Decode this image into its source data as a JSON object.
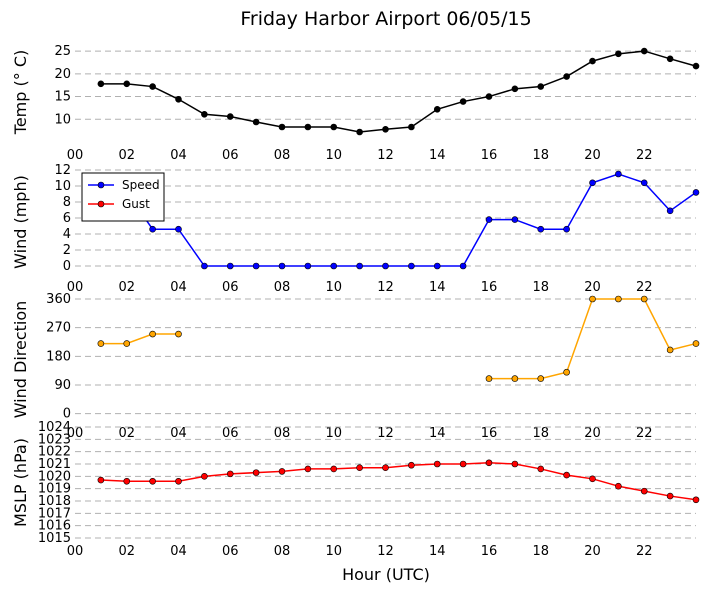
{
  "title": "Friday Harbor Airport 06/05/15",
  "xlabel": "Hour (UTC)",
  "x_ticks": [
    "00",
    "02",
    "04",
    "06",
    "08",
    "10",
    "12",
    "14",
    "16",
    "18",
    "20",
    "22"
  ],
  "x_range": [
    0,
    24
  ],
  "chart_data": [
    {
      "type": "line",
      "ylabel": "Temp ($^\\circ$C)",
      "ylabel_display": "Temp (° C)",
      "ylim": [
        5,
        27
      ],
      "yticks": [
        10,
        15,
        20,
        25
      ],
      "grid": true,
      "legend": null,
      "series": [
        {
          "color": "#000000",
          "x": [
            1,
            2,
            3,
            4,
            5,
            6,
            7,
            8,
            9,
            10,
            11,
            12,
            13,
            14,
            15,
            16,
            17,
            18,
            19,
            20,
            21,
            22,
            23,
            24
          ],
          "y": [
            17.8,
            17.8,
            17.2,
            14.4,
            11.1,
            10.6,
            9.4,
            8.3,
            8.3,
            8.3,
            7.2,
            7.8,
            8.3,
            12.2,
            13.9,
            15.0,
            16.7,
            17.2,
            19.4,
            22.8,
            24.4,
            25.0,
            23.3,
            21.7
          ]
        }
      ]
    },
    {
      "type": "line",
      "ylabel": "Wind (mph)",
      "ylim": [
        -1,
        12
      ],
      "yticks": [
        0,
        2,
        4,
        6,
        8,
        10,
        12
      ],
      "grid": true,
      "legend": "upper left",
      "series": [
        {
          "name": "Speed",
          "color": "#0000ff",
          "x": [
            1,
            2,
            3,
            4,
            5,
            6,
            7,
            8,
            9,
            10,
            11,
            12,
            13,
            14,
            15,
            16,
            17,
            18,
            19,
            20,
            21,
            22,
            23,
            24
          ],
          "y": [
            9.2,
            9.2,
            4.6,
            4.6,
            0,
            0,
            0,
            0,
            0,
            0,
            0,
            0,
            0,
            0,
            0,
            5.8,
            5.8,
            4.6,
            4.6,
            10.4,
            11.5,
            10.4,
            6.9,
            9.2
          ]
        },
        {
          "name": "Gust",
          "color": "#ff0000",
          "x": [],
          "y": []
        }
      ]
    },
    {
      "type": "line",
      "ylabel": "Wind Direction",
      "ylim": [
        -20,
        360
      ],
      "yticks": [
        0,
        90,
        180,
        270,
        360
      ],
      "grid": true,
      "legend": null,
      "series": [
        {
          "color": "#ffa500",
          "segments": [
            {
              "x": [
                1,
                2,
                3,
                4
              ],
              "y": [
                220,
                220,
                250,
                250
              ]
            },
            {
              "x": [
                16,
                17,
                18,
                19,
                20,
                21,
                22,
                23,
                24
              ],
              "y": [
                110,
                110,
                110,
                130,
                360,
                360,
                360,
                200,
                220
              ]
            }
          ]
        }
      ]
    },
    {
      "type": "line",
      "ylabel": "MSLP (hPa)",
      "ylim": [
        1015,
        1024
      ],
      "yticks": [
        1015,
        1016,
        1017,
        1018,
        1019,
        1020,
        1021,
        1022,
        1023,
        1024
      ],
      "grid": true,
      "legend": null,
      "series": [
        {
          "color": "#ff0000",
          "x": [
            1,
            2,
            3,
            4,
            5,
            6,
            7,
            8,
            9,
            10,
            11,
            12,
            13,
            14,
            15,
            16,
            17,
            18,
            19,
            20,
            21,
            22,
            23,
            24
          ],
          "y": [
            1019.7,
            1019.6,
            1019.6,
            1019.6,
            1020.0,
            1020.2,
            1020.3,
            1020.4,
            1020.6,
            1020.6,
            1020.7,
            1020.7,
            1020.9,
            1021.0,
            1021.0,
            1021.1,
            1021.0,
            1020.6,
            1020.1,
            1019.8,
            1019.2,
            1018.8,
            1018.4,
            1018.1
          ]
        }
      ]
    }
  ]
}
